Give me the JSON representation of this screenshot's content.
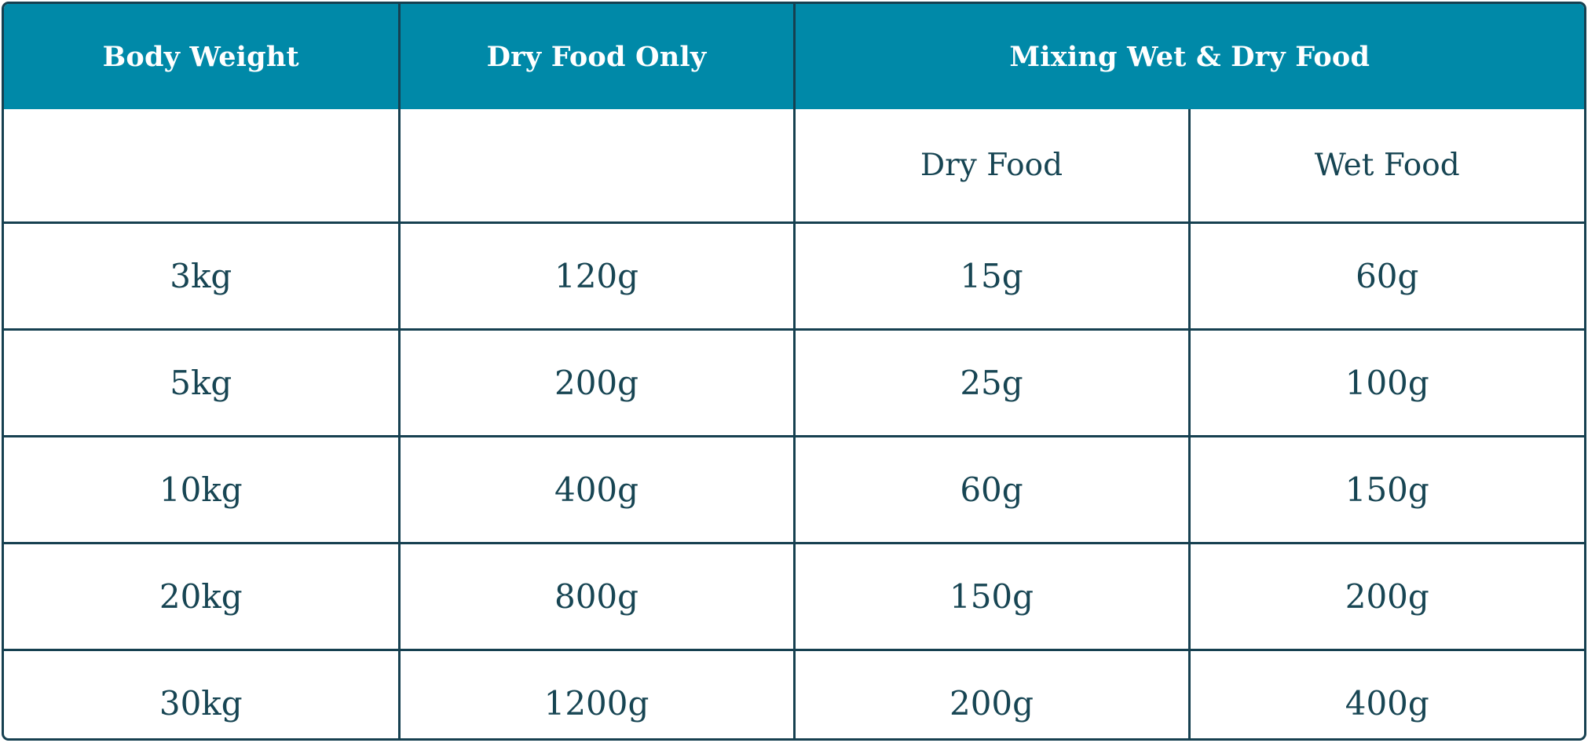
{
  "table": {
    "headers": {
      "body_weight": "Body Weight",
      "dry_food_only": "Dry Food Only",
      "mixing": "Mixing Wet & Dry Food"
    },
    "subheaders": {
      "dry_food": "Dry Food",
      "wet_food": "Wet Food"
    },
    "rows": [
      [
        "3kg",
        "120g",
        "15g",
        "60g"
      ],
      [
        "5kg",
        "200g",
        "25g",
        "100g"
      ],
      [
        "10kg",
        "400g",
        "60g",
        "150g"
      ],
      [
        "20kg",
        "800g",
        "150g",
        "200g"
      ],
      [
        "30kg",
        "1200g",
        "200g",
        "400g"
      ]
    ]
  },
  "colors": {
    "header_background": "#0089a8",
    "border": "#164050",
    "text": "#174553"
  }
}
